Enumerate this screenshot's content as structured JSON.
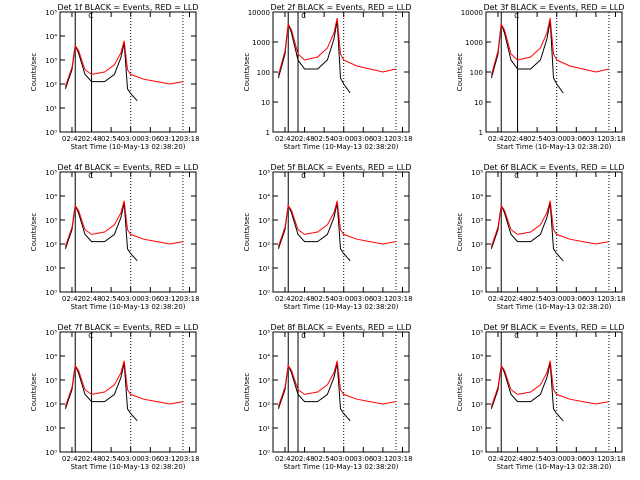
{
  "panels": [
    {
      "title": "Det 1f BLACK = Events, RED = LLD",
      "dash": "C",
      "ylim": [
        0,
        5
      ],
      "yticks": [
        "10⁰",
        "10¹",
        "10²",
        "10³",
        "10⁴",
        "10⁵"
      ],
      "solid": [
        "02:43",
        "02:48"
      ]
    },
    {
      "title": "Det 2f BLACK = Events, RED = LLD",
      "dash": "C",
      "ylim": [
        0,
        4
      ],
      "yticks": [
        "1",
        "10",
        "100",
        "1000",
        "10000"
      ],
      "solid": [
        "02:43",
        "02:46"
      ]
    },
    {
      "title": "Det 3f BLACK = Events, RED = LLD",
      "dash": "C",
      "ylim": [
        0,
        4
      ],
      "yticks": [
        "1",
        "10",
        "100",
        "1000",
        "10000"
      ],
      "solid": [
        "02:43",
        "02:48"
      ]
    },
    {
      "title": "Det 4f BLACK = Events, RED = LLD",
      "dash": "C",
      "ylim": [
        0,
        5
      ],
      "yticks": [
        "10⁰",
        "10¹",
        "10²",
        "10³",
        "10⁴",
        "10⁵"
      ],
      "solid": [
        "02:43"
      ]
    },
    {
      "title": "Det 5f BLACK = Events, RED = LLD",
      "dash": "C",
      "ylim": [
        0,
        5
      ],
      "yticks": [
        "10⁰",
        "10¹",
        "10²",
        "10³",
        "10⁴",
        "10⁵"
      ],
      "solid": [
        "02:43"
      ]
    },
    {
      "title": "Det 6f BLACK = Events, RED = LLD",
      "dash": "C",
      "ylim": [
        0,
        5
      ],
      "yticks": [
        "10⁰",
        "10¹",
        "10²",
        "10³",
        "10⁴",
        "10⁵"
      ],
      "solid": [
        "02:43"
      ]
    },
    {
      "title": "Det 7f BLACK = Events, RED = LLD",
      "dash": "C",
      "ylim": [
        0,
        5
      ],
      "yticks": [
        "10⁰",
        "10¹",
        "10²",
        "10³",
        "10⁴",
        "10⁵"
      ],
      "solid": [
        "02:43",
        "02:48"
      ]
    },
    {
      "title": "Det 8f BLACK = Events, RED = LLD",
      "dash": "C",
      "ylim": [
        0,
        5
      ],
      "yticks": [
        "10⁰",
        "10¹",
        "10²",
        "10³",
        "10⁴",
        "10⁵"
      ],
      "solid": [
        "02:43",
        "02:46"
      ]
    },
    {
      "title": "Det 9f BLACK = Events, RED = LLD",
      "dash": "C",
      "ylim": [
        0,
        5
      ],
      "yticks": [
        "10⁰",
        "10¹",
        "10²",
        "10³",
        "10⁴",
        "10⁵"
      ],
      "solid": [
        "02:43"
      ]
    }
  ],
  "shared": {
    "xlabel": "Start Time (10-May-13 02:38:20)",
    "ylabel": "Counts/sec",
    "xticks": [
      "02:42",
      "02:48",
      "02:54",
      "03:00",
      "03:06",
      "03:12",
      "03:18"
    ],
    "dotted": [
      "03:00",
      "03:16"
    ]
  },
  "chart_data": {
    "type": "line",
    "title": "",
    "xlabel": "Start Time (10-May-13 02:38:20)",
    "ylabel": "Counts/sec",
    "yscale": "log",
    "xlim": [
      "02:38:20",
      "03:20:00"
    ],
    "grid": false,
    "legend": "none",
    "colors": {
      "events": "#000000",
      "lld": "#ff0000"
    },
    "series_kinds": [
      "events",
      "lld"
    ],
    "series_approx": {
      "lld_log10": {
        "x": [
          "02:40",
          "02:42",
          "02:43",
          "02:44",
          "02:46",
          "02:48",
          "02:52",
          "02:55",
          "02:57",
          "02:58",
          "02:59",
          "03:00",
          "03:04",
          "03:08",
          "03:12",
          "03:16"
        ],
        "y": [
          1.9,
          2.7,
          3.6,
          3.4,
          2.6,
          2.4,
          2.5,
          2.8,
          3.3,
          3.8,
          2.6,
          2.4,
          2.2,
          2.1,
          2.0,
          2.1
        ]
      },
      "events_log10": {
        "x": [
          "02:40",
          "02:42",
          "02:43",
          "02:44",
          "02:46",
          "02:48",
          "02:52",
          "02:55",
          "02:57",
          "02:58",
          "02:59",
          "03:00",
          "03:02"
        ],
        "y": [
          1.8,
          2.6,
          3.6,
          3.3,
          2.4,
          2.1,
          2.1,
          2.4,
          3.1,
          3.7,
          1.8,
          1.6,
          1.3
        ]
      }
    }
  }
}
